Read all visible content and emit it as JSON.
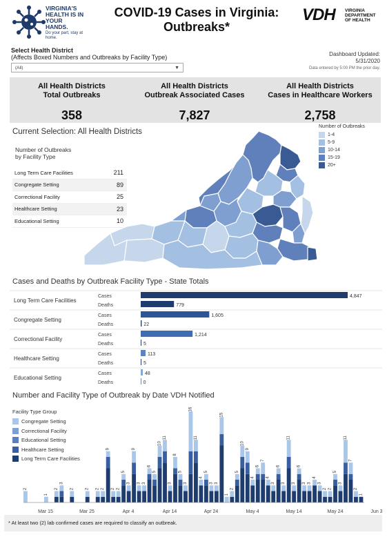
{
  "header": {
    "title_line1": "COVID-19 Cases in Virginia:",
    "title_line2": "Outbreaks*",
    "logo_left_text": "VIRGINIA'S HEALTH IS IN YOUR HANDS.",
    "logo_left_sub": "Do your part, stay at home.",
    "logo_right_big": "VDH",
    "logo_right_small": "VIRGINIA DEPARTMENT OF HEALTH"
  },
  "filter": {
    "label": "Select Health District",
    "sublabel": "(Affects Boxed Numbers and Outbreaks by Facility Type)",
    "selected": "(All)"
  },
  "updated": {
    "label": "Dashboard Updated:",
    "date": "5/31/2020",
    "note": "Data entered by 5:00 PM the prior day."
  },
  "stats": [
    {
      "label1": "All Health Districts",
      "label2": "Total Outbreaks",
      "value": "358"
    },
    {
      "label1": "All Health Districts",
      "label2": "Outbreak Associated Cases",
      "value": "7,827"
    },
    {
      "label1": "All Health Districts",
      "label2": "Cases in Healthcare Workers",
      "value": "2,758"
    }
  ],
  "selection": {
    "title": "Current Selection: All Health Districts",
    "table_title_1": "Number of Outbreaks",
    "table_title_2": "by Facility Type",
    "rows": [
      {
        "label": "Long Term Care Facilities",
        "value": "211"
      },
      {
        "label": "Congregate Setting",
        "value": "89"
      },
      {
        "label": "Correctional Facility",
        "value": "25"
      },
      {
        "label": "Healthcare Setting",
        "value": "23"
      },
      {
        "label": "Educational Setting",
        "value": "10"
      }
    ]
  },
  "map_legend": {
    "title": "Number of Outbreaks",
    "items": [
      {
        "label": "1-4",
        "color": "#c6d7ec"
      },
      {
        "label": "5-9",
        "color": "#a3bfe2"
      },
      {
        "label": "10-14",
        "color": "#7f9fd0"
      },
      {
        "label": "15-19",
        "color": "#5f80bb"
      },
      {
        "label": "20+",
        "color": "#3a5a93"
      }
    ]
  },
  "cases_deaths": {
    "title": "Cases and Deaths by Outbreak Facility Type - State Totals",
    "max": 4847,
    "cases_label": "Cases",
    "deaths_label": "Deaths",
    "rows": [
      {
        "label": "Long Term Care Facilities",
        "cases": 4847,
        "cases_text": "4,847",
        "deaths": 779,
        "deaths_text": "779",
        "color": "#1f3c6e"
      },
      {
        "label": "Congregate Setting",
        "cases": 1605,
        "cases_text": "1,605",
        "deaths": 22,
        "deaths_text": "22",
        "color": "#2e5597"
      },
      {
        "label": "Correctional Facility",
        "cases": 1214,
        "cases_text": "1,214",
        "deaths": 5,
        "deaths_text": "5",
        "color": "#3f6db1"
      },
      {
        "label": "Healthcare Setting",
        "cases": 113,
        "cases_text": "113",
        "deaths": 5,
        "deaths_text": "5",
        "color": "#5a84c4"
      },
      {
        "label": "Educational Setting",
        "cases": 48,
        "cases_text": "48",
        "deaths": 0,
        "deaths_text": "0",
        "color": "#86a8d8"
      }
    ]
  },
  "chart_data": {
    "type": "bar",
    "title": "Number and Facility Type of Outbreak by Date VDH Notified",
    "legend_title": "Facility Type Group",
    "series": [
      {
        "name": "Congregate Setting",
        "color": "#aac6e8"
      },
      {
        "name": "Correctional Facility",
        "color": "#7e9fd3"
      },
      {
        "name": "Educational Setting",
        "color": "#5a7fc0"
      },
      {
        "name": "Healthcare Setting",
        "color": "#3a5fa0"
      },
      {
        "name": "Long Term Care Facilities",
        "color": "#1f3c6e"
      }
    ],
    "x_ticks": [
      "Mar 15",
      "Mar 25",
      "Apr 4",
      "Apr 14",
      "Apr 24",
      "May 4",
      "May 14",
      "May 24",
      "Jun 3"
    ],
    "ylim": [
      0,
      16
    ],
    "bars": [
      {
        "total": 2,
        "ltc": 0,
        "cong": 2
      },
      {
        "total": 0,
        "ltc": 0,
        "cong": 0
      },
      {
        "total": 0,
        "ltc": 0,
        "cong": 0
      },
      {
        "total": 0,
        "ltc": 0,
        "cong": 0
      },
      {
        "total": 1,
        "ltc": 0,
        "cong": 1
      },
      {
        "total": 0,
        "ltc": 0,
        "cong": 0
      },
      {
        "total": 2,
        "ltc": 1,
        "cong": 1
      },
      {
        "total": 3,
        "ltc": 1,
        "cong": 1
      },
      {
        "total": 0,
        "ltc": 0,
        "cong": 0
      },
      {
        "total": 2,
        "ltc": 1,
        "cong": 1
      },
      {
        "total": 0,
        "ltc": 0,
        "cong": 0
      },
      {
        "total": 0,
        "ltc": 0,
        "cong": 0
      },
      {
        "total": 2,
        "ltc": 1,
        "cong": 1
      },
      {
        "total": 0,
        "ltc": 0,
        "cong": 0
      },
      {
        "total": 2,
        "ltc": 1,
        "cong": 1
      },
      {
        "total": 2,
        "ltc": 1,
        "cong": 1
      },
      {
        "total": 9,
        "ltc": 6,
        "cong": 1
      },
      {
        "total": 2,
        "ltc": 1,
        "cong": 1
      },
      {
        "total": 2,
        "ltc": 1,
        "cong": 1
      },
      {
        "total": 5,
        "ltc": 3,
        "cong": 1
      },
      {
        "total": 3,
        "ltc": 2,
        "cong": 1
      },
      {
        "total": 9,
        "ltc": 5,
        "cong": 2
      },
      {
        "total": 3,
        "ltc": 2,
        "cong": 1
      },
      {
        "total": 3,
        "ltc": 2,
        "cong": 1
      },
      {
        "total": 6,
        "ltc": 4,
        "cong": 1
      },
      {
        "total": 5,
        "ltc": 3,
        "cong": 1
      },
      {
        "total": 10,
        "ltc": 6,
        "cong": 2
      },
      {
        "total": 11,
        "ltc": 7,
        "cong": 2
      },
      {
        "total": 3,
        "ltc": 2,
        "cong": 1
      },
      {
        "total": 8,
        "ltc": 5,
        "cong": 2
      },
      {
        "total": 5,
        "ltc": 3,
        "cong": 1
      },
      {
        "total": 3,
        "ltc": 2,
        "cong": 1
      },
      {
        "total": 16,
        "ltc": 5,
        "cong": 7
      },
      {
        "total": 11,
        "ltc": 7,
        "cong": 2
      },
      {
        "total": 4,
        "ltc": 3,
        "cong": 1
      },
      {
        "total": 5,
        "ltc": 3,
        "cong": 1
      },
      {
        "total": 3,
        "ltc": 2,
        "cong": 1
      },
      {
        "total": 3,
        "ltc": 2,
        "cong": 1
      },
      {
        "total": 15,
        "ltc": 10,
        "cong": 3
      },
      {
        "total": 1,
        "ltc": 0,
        "cong": 1
      },
      {
        "total": 2,
        "ltc": 1,
        "cong": 1
      },
      {
        "total": 5,
        "ltc": 3,
        "cong": 1
      },
      {
        "total": 10,
        "ltc": 6,
        "cong": 2
      },
      {
        "total": 9,
        "ltc": 5,
        "cong": 2
      },
      {
        "total": 4,
        "ltc": 3,
        "cong": 1
      },
      {
        "total": 6,
        "ltc": 4,
        "cong": 1
      },
      {
        "total": 7,
        "ltc": 4,
        "cong": 2
      },
      {
        "total": 4,
        "ltc": 3,
        "cong": 1
      },
      {
        "total": 3,
        "ltc": 2,
        "cong": 1
      },
      {
        "total": 6,
        "ltc": 4,
        "cong": 1
      },
      {
        "total": 3,
        "ltc": 2,
        "cong": 1
      },
      {
        "total": 11,
        "ltc": 6,
        "cong": 3
      },
      {
        "total": 3,
        "ltc": 2,
        "cong": 1
      },
      {
        "total": 6,
        "ltc": 4,
        "cong": 1
      },
      {
        "total": 3,
        "ltc": 2,
        "cong": 1
      },
      {
        "total": 3,
        "ltc": 2,
        "cong": 1
      },
      {
        "total": 4,
        "ltc": 3,
        "cong": 1
      },
      {
        "total": 3,
        "ltc": 2,
        "cong": 1
      },
      {
        "total": 2,
        "ltc": 1,
        "cong": 1
      },
      {
        "total": 2,
        "ltc": 1,
        "cong": 1
      },
      {
        "total": 5,
        "ltc": 3,
        "cong": 1
      },
      {
        "total": 3,
        "ltc": 2,
        "cong": 1
      },
      {
        "total": 11,
        "ltc": 5,
        "cong": 4
      },
      {
        "total": 7,
        "ltc": 4,
        "cong": 2
      },
      {
        "total": 2,
        "ltc": 1,
        "cong": 1
      },
      {
        "total": 1,
        "ltc": 1,
        "cong": 0
      }
    ]
  },
  "footnote": "* At least two (2) lab confirmed cases are required to classify an outbreak."
}
